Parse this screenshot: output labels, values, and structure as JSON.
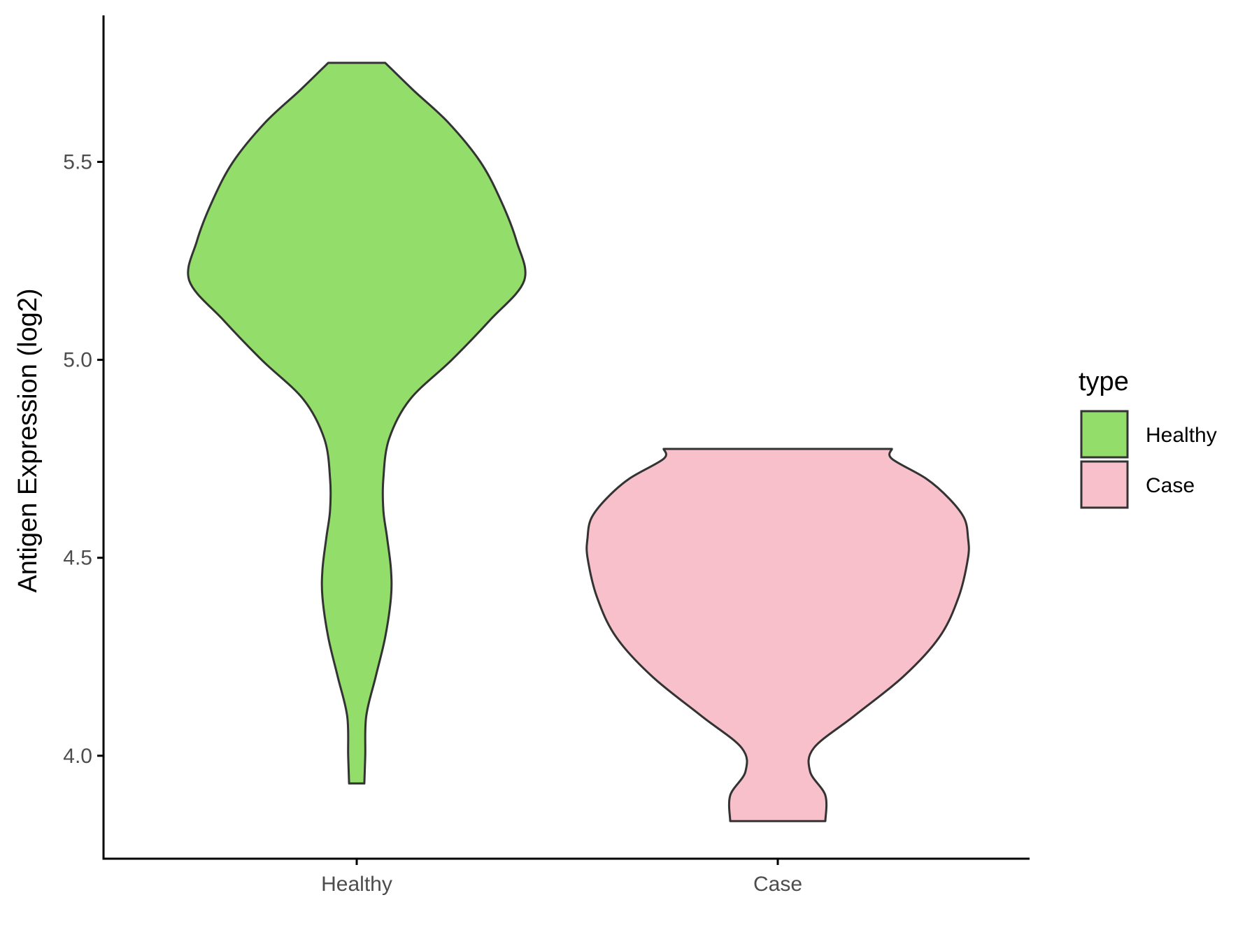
{
  "chart_data": {
    "type": "violin",
    "title": "",
    "xlabel": "",
    "ylabel": "Antigen Expression (log2)",
    "ylim": [
      3.74,
      5.87
    ],
    "yticks": [
      "4.0",
      "4.5",
      "5.0",
      "5.5"
    ],
    "grid": false,
    "categories": [
      "Healthy",
      "Case"
    ],
    "legend": {
      "title": "type",
      "position": "right",
      "entries": [
        "Healthy",
        "Case"
      ]
    },
    "series": [
      {
        "name": "Healthy",
        "color": "#93dd6a",
        "y_min": 3.93,
        "y_max": 5.75,
        "density_profile": [
          [
            3.93,
            0.04
          ],
          [
            4.0,
            0.045
          ],
          [
            4.1,
            0.05
          ],
          [
            4.2,
            0.1
          ],
          [
            4.3,
            0.15
          ],
          [
            4.4,
            0.18
          ],
          [
            4.47,
            0.18
          ],
          [
            4.55,
            0.16
          ],
          [
            4.62,
            0.14
          ],
          [
            4.7,
            0.14
          ],
          [
            4.8,
            0.17
          ],
          [
            4.9,
            0.28
          ],
          [
            5.0,
            0.5
          ],
          [
            5.1,
            0.7
          ],
          [
            5.2,
            0.88
          ],
          [
            5.3,
            0.84
          ],
          [
            5.4,
            0.76
          ],
          [
            5.5,
            0.65
          ],
          [
            5.6,
            0.48
          ],
          [
            5.68,
            0.3
          ],
          [
            5.75,
            0.15
          ]
        ]
      },
      {
        "name": "Case",
        "color": "#f8c0cb",
        "y_min": 3.835,
        "y_max": 4.775,
        "density_profile": [
          [
            3.835,
            0.25
          ],
          [
            3.9,
            0.25
          ],
          [
            3.96,
            0.17
          ],
          [
            4.02,
            0.19
          ],
          [
            4.1,
            0.4
          ],
          [
            4.2,
            0.66
          ],
          [
            4.3,
            0.85
          ],
          [
            4.4,
            0.95
          ],
          [
            4.5,
            1.0
          ],
          [
            4.55,
            1.0
          ],
          [
            4.6,
            0.98
          ],
          [
            4.65,
            0.9
          ],
          [
            4.7,
            0.78
          ],
          [
            4.75,
            0.6
          ],
          [
            4.775,
            0.6
          ]
        ]
      }
    ]
  }
}
